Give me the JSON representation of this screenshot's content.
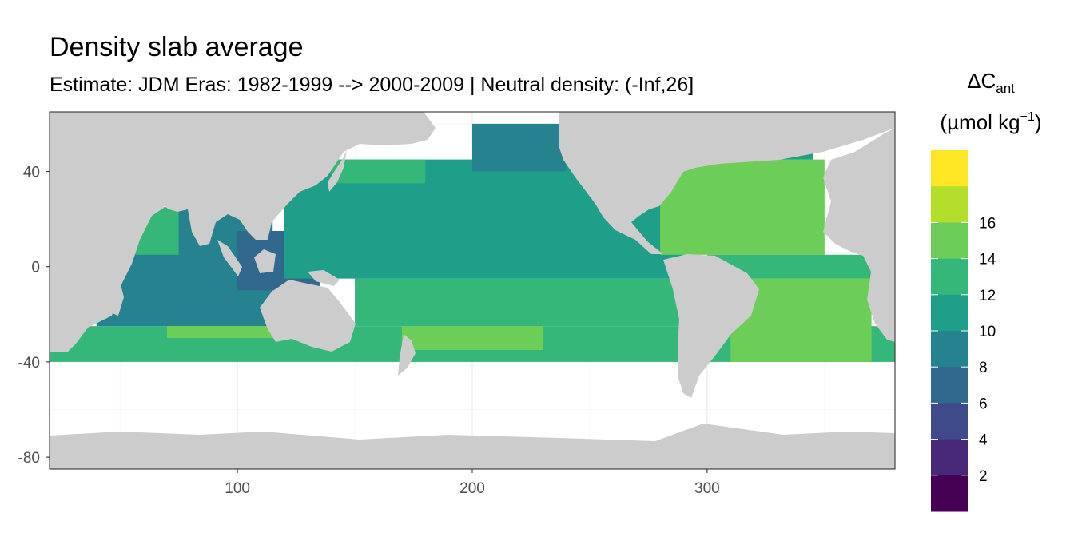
{
  "title": "Density slab average",
  "subtitle": "Estimate: JDM Eras: 1982-1999 --> 2000-2009 | Neutral density: (-Inf,26]",
  "legend": {
    "symbol": "ΔC",
    "subscript": "ant",
    "unit_open": "(µmol kg",
    "unit_sup": "−1",
    "unit_close": ")",
    "bins": [
      {
        "label": "",
        "color": "#440154"
      },
      {
        "label": "2",
        "color": "#482878"
      },
      {
        "label": "4",
        "color": "#3E4A89"
      },
      {
        "label": "6",
        "color": "#31688E"
      },
      {
        "label": "8",
        "color": "#26828E"
      },
      {
        "label": "10",
        "color": "#1F9E89"
      },
      {
        "label": "12",
        "color": "#35B779"
      },
      {
        "label": "14",
        "color": "#6DCD59"
      },
      {
        "label": "16",
        "color": "#B4DE2C"
      },
      {
        "label": "",
        "color": "#FDE725"
      }
    ]
  },
  "chart_data": {
    "type": "heatmap",
    "xlim": [
      20,
      380
    ],
    "ylim": [
      -85,
      65
    ],
    "x_ticks": [
      100,
      200,
      300
    ],
    "y_ticks": [
      40,
      0,
      -40,
      -80
    ],
    "land_color": "#CCCCCC",
    "nodata_color": "#FFFFFF",
    "regions": [
      {
        "name": "southern-ocean-band",
        "value": 13,
        "lon": [
          20,
          380
        ],
        "lat": [
          -40,
          -25
        ]
      },
      {
        "name": "indian-ocean",
        "value": 9,
        "lon": [
          40,
          115
        ],
        "lat": [
          -25,
          25
        ]
      },
      {
        "name": "arabian-sea",
        "value": 13,
        "lon": [
          50,
          75
        ],
        "lat": [
          5,
          25
        ]
      },
      {
        "name": "bay-of-bengal",
        "value": 9,
        "lon": [
          80,
          100
        ],
        "lat": [
          5,
          22
        ]
      },
      {
        "name": "maritime-continent",
        "value": 7,
        "lon": [
          100,
          135
        ],
        "lat": [
          -10,
          15
        ]
      },
      {
        "name": "north-pacific",
        "value": 11,
        "lon": [
          120,
          290
        ],
        "lat": [
          -5,
          45
        ]
      },
      {
        "name": "kuroshio",
        "value": 13,
        "lon": [
          140,
          180
        ],
        "lat": [
          35,
          45
        ]
      },
      {
        "name": "northeast-pacific",
        "value": 9,
        "lon": [
          200,
          240
        ],
        "lat": [
          40,
          60
        ]
      },
      {
        "name": "south-pacific",
        "value": 13,
        "lon": [
          150,
          290
        ],
        "lat": [
          -25,
          -5
        ]
      },
      {
        "name": "south-pacific-core",
        "value": 15,
        "lon": [
          170,
          230
        ],
        "lat": [
          -35,
          -25
        ]
      },
      {
        "name": "indian-south-core",
        "value": 15,
        "lon": [
          70,
          115
        ],
        "lat": [
          -30,
          -25
        ]
      },
      {
        "name": "north-atlantic",
        "value": 15,
        "lon": [
          280,
          350
        ],
        "lat": [
          5,
          45
        ]
      },
      {
        "name": "north-atlantic-subpolar",
        "value": 11,
        "lon": [
          295,
          345
        ],
        "lat": [
          45,
          55
        ]
      },
      {
        "name": "south-atlantic",
        "value": 15,
        "lon": [
          310,
          370
        ],
        "lat": [
          -40,
          -5
        ]
      },
      {
        "name": "tropical-atlantic",
        "value": 13,
        "lon": [
          300,
          370
        ],
        "lat": [
          -5,
          5
        ]
      }
    ]
  }
}
